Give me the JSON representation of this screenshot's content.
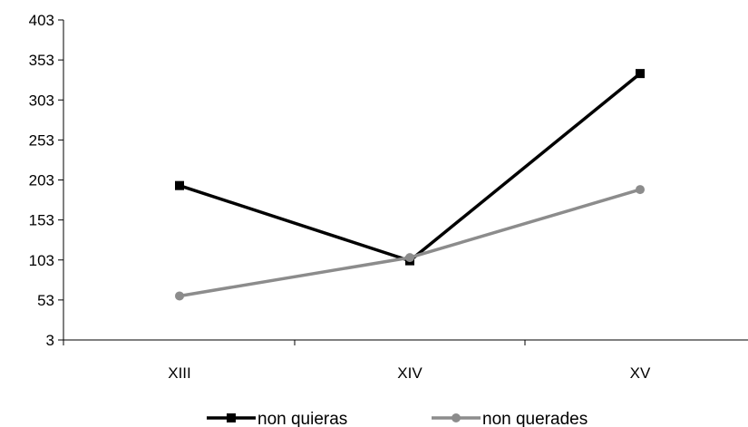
{
  "chart_data": {
    "type": "line",
    "title": "",
    "xlabel": "",
    "ylabel": "",
    "categories": [
      "XIII",
      "XIV",
      "XV"
    ],
    "ylim": [
      3,
      403
    ],
    "yticks": [
      3,
      53,
      103,
      153,
      203,
      253,
      303,
      353,
      403
    ],
    "grid": false,
    "legend_position": "bottom",
    "series": [
      {
        "name": "non quieras",
        "values": [
          196,
          102,
          336
        ],
        "color": "#000000",
        "marker": "square"
      },
      {
        "name": "non querades",
        "values": [
          58,
          106,
          191
        ],
        "color": "#8c8c8c",
        "marker": "circle"
      }
    ]
  }
}
